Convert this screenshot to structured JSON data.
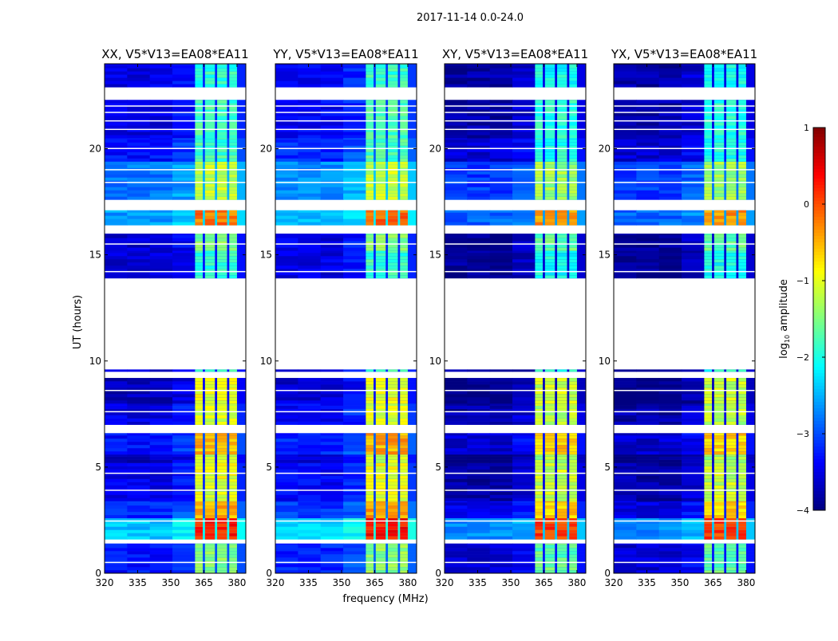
{
  "chart_data": {
    "type": "heatmap",
    "title": "2017-11-14 0.0-24.0",
    "xlabel": "frequency (MHz)",
    "ylabel": "UT (hours)",
    "xlim": [
      320,
      384
    ],
    "ylim": [
      0,
      24
    ],
    "xticks": [
      320,
      335,
      350,
      365,
      380
    ],
    "yticks": [
      0,
      5,
      10,
      15,
      20
    ],
    "colorbar": {
      "label_main": "log",
      "label_sub": "10",
      "label_rest": " amplitude",
      "range": [
        -4,
        1
      ],
      "ticks": [
        1,
        0,
        -1,
        -2,
        -3,
        -4
      ],
      "colormap": "jet"
    },
    "signal_subbands_mhz": [
      [
        361,
        364.5
      ],
      [
        365.5,
        370
      ],
      [
        371,
        375.5
      ],
      [
        376.5,
        380
      ]
    ],
    "panels": [
      {
        "title": "XX, V5*V13=EA08*EA11",
        "offset": 0
      },
      {
        "title": "YY, V5*V13=EA08*EA11",
        "offset": 0.1
      },
      {
        "title": "XY, V5*V13=EA08*EA11",
        "offset": -0.3
      },
      {
        "title": "YX, V5*V13=EA08*EA11",
        "offset": -0.3
      }
    ],
    "time_segments_hours": [
      {
        "t": [
          0,
          1.4
        ],
        "bg": -3.3,
        "sig": -1.5
      },
      {
        "t": [
          1.4,
          1.6
        ],
        "gap": true
      },
      {
        "t": [
          1.6,
          2.6
        ],
        "bg": -2.4,
        "sig": 0.25
      },
      {
        "t": [
          2.6,
          3.4
        ],
        "bg": -3.2,
        "sig": -0.5
      },
      {
        "t": [
          3.4,
          5.2
        ],
        "bg": -3.5,
        "sig": -1.0
      },
      {
        "t": [
          5.2,
          5.6
        ],
        "bg": -3.7,
        "sig": -1.2
      },
      {
        "t": [
          5.6,
          6.6
        ],
        "bg": -3.3,
        "sig": -0.5
      },
      {
        "t": [
          6.6,
          7.0
        ],
        "gap": true
      },
      {
        "t": [
          7.0,
          8.0
        ],
        "bg": -3.5,
        "sig": -1.1
      },
      {
        "t": [
          8.0,
          9.2
        ],
        "bg": -3.7,
        "sig": -1.0
      },
      {
        "t": [
          9.2,
          9.5
        ],
        "gap": true
      },
      {
        "t": [
          9.5,
          9.6
        ],
        "bg": -3.6,
        "sig": -1.8
      },
      {
        "t": [
          9.6,
          13.9
        ],
        "gap": true
      },
      {
        "t": [
          13.9,
          15.2
        ],
        "bg": -3.6,
        "sig": -1.9
      },
      {
        "t": [
          15.2,
          16.0
        ],
        "bg": -3.6,
        "sig": -1.5
      },
      {
        "t": [
          16.0,
          16.4
        ],
        "gap": true
      },
      {
        "t": [
          16.4,
          17.1
        ],
        "bg": -2.6,
        "sig": -0.2
      },
      {
        "t": [
          17.1,
          17.6
        ],
        "gap": true
      },
      {
        "t": [
          17.6,
          19.4
        ],
        "bg": -2.8,
        "sig": -1.2
      },
      {
        "t": [
          19.4,
          20.5
        ],
        "bg": -3.3,
        "sig": -1.8
      },
      {
        "t": [
          20.5,
          22.3
        ],
        "bg": -3.5,
        "sig": -1.8
      },
      {
        "t": [
          22.3,
          22.9
        ],
        "gap": true
      },
      {
        "t": [
          22.9,
          24
        ],
        "bg": -3.5,
        "sig": -1.9
      }
    ],
    "white_lines_hours": [
      0.5,
      2.45,
      3.9,
      4.7,
      7.6,
      8.6,
      14.2,
      15.5,
      18.4,
      19.0,
      20.0,
      20.9,
      21.3,
      21.7,
      22.0
    ]
  }
}
